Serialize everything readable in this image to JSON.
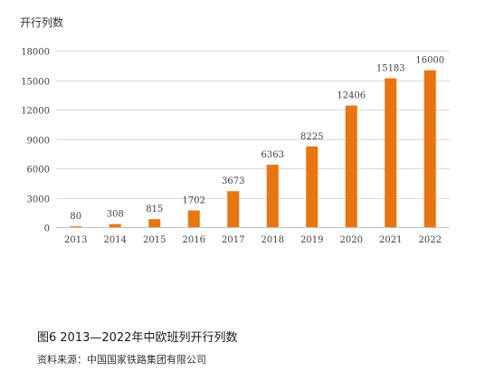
{
  "caption": {
    "figure_number": "图6",
    "title": "2013—2022年中欧班列开行列数"
  },
  "source": "资料来源：中国国家铁路集团有限公司",
  "chart_data": {
    "type": "bar",
    "title": "",
    "ylabel": "开行列数",
    "xlabel": "",
    "categories": [
      "2013",
      "2014",
      "2015",
      "2016",
      "2017",
      "2018",
      "2019",
      "2020",
      "2021",
      "2022"
    ],
    "values": [
      80,
      308,
      815,
      1702,
      3673,
      6363,
      8225,
      12406,
      15183,
      16000
    ],
    "data_labels": [
      "80",
      "308",
      "815",
      "1702",
      "3673",
      "6363",
      "8225",
      "12406",
      "15183",
      "16000"
    ],
    "ylim": [
      0,
      18000
    ],
    "yticks": [
      0,
      3000,
      6000,
      9000,
      12000,
      15000,
      18000
    ],
    "ytick_labels": [
      "0",
      "3000",
      "6000",
      "9000",
      "12000",
      "15000",
      "18000"
    ],
    "grid": "horizontal",
    "legend": "none",
    "colors": {
      "bar": "#EB740F",
      "grid": "#D9D9D9",
      "axis": "#BFBFBF",
      "text": "#404040"
    }
  }
}
